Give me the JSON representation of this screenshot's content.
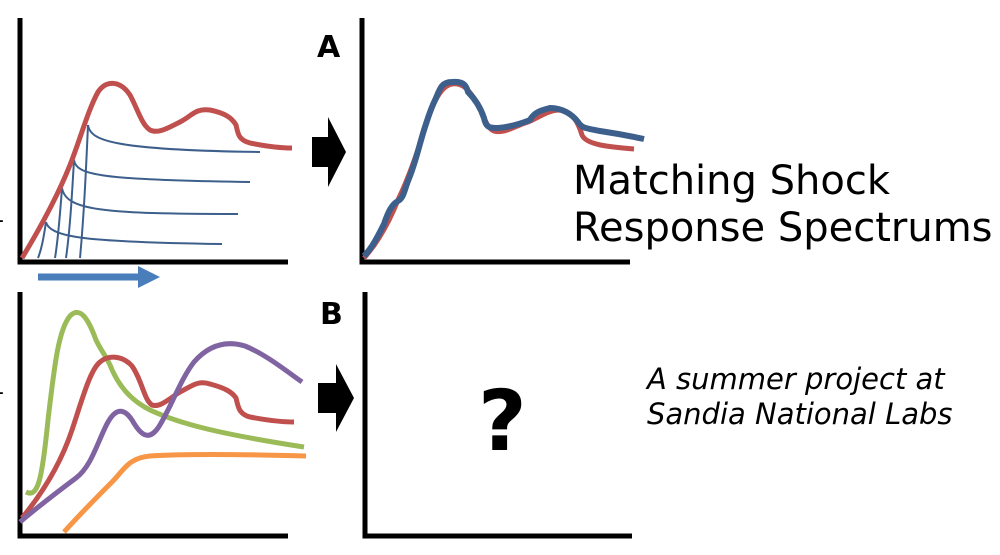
{
  "panel_a": {
    "label": "A"
  },
  "panel_b": {
    "label": "B",
    "placeholder_symbol": "?"
  },
  "title": {
    "line1": "Matching Shock",
    "line2": "Response Spectrums"
  },
  "subtitle": {
    "line1": "A summer project at",
    "line2": "Sandia National Labs"
  },
  "axis_ticks": [
    "-",
    "-"
  ],
  "colors": {
    "red": "#c0504d",
    "blue": "#3d5f8c",
    "arrow_blue": "#4a7ebb",
    "green": "#9bbb59",
    "purple": "#8064a2",
    "orange": "#f79646",
    "black": "#000000"
  },
  "icons": [
    "right-arrow-icon",
    "right-arrow-icon",
    "timeline-arrow-icon"
  ]
}
